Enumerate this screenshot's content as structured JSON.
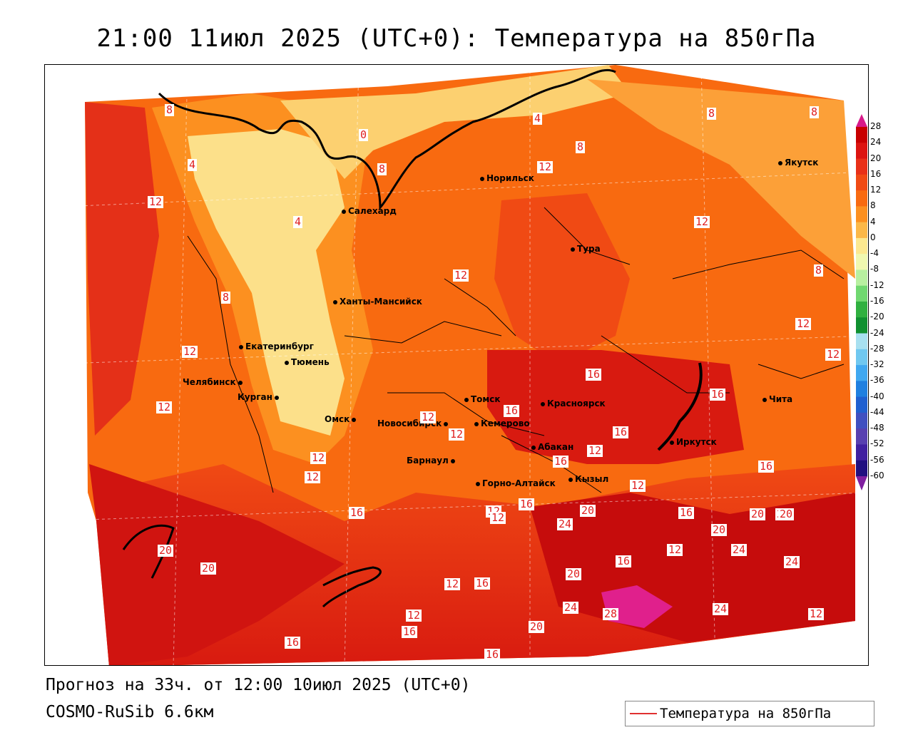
{
  "title": "21:00 11июл 2025 (UTC+0): Температура на 850гПа",
  "forecast_text": "Прогноз на 33ч. от 12:00 10июл 2025 (UTC+0)",
  "model_text": "COSMO-RuSib 6.6км",
  "legend_label": "Температура на 850гПа",
  "colorbar": {
    "ticks": [
      "28",
      "24",
      "20",
      "16",
      "12",
      "8",
      "4",
      "0",
      "-4",
      "-8",
      "-12",
      "-16",
      "-20",
      "-24",
      "-28",
      "-32",
      "-36",
      "-40",
      "-44",
      "-48",
      "-52",
      "-56",
      "-60"
    ],
    "colors": [
      "#c80000",
      "#dc1410",
      "#e83018",
      "#f04a14",
      "#f86a10",
      "#fc9020",
      "#fcb848",
      "#fce890",
      "#f0f8b0",
      "#b8f0a0",
      "#70d870",
      "#30b040",
      "#109030",
      "#a8e0f0",
      "#70c8f0",
      "#40a8f0",
      "#2080e0",
      "#2060d0",
      "#4050c0",
      "#5840b0",
      "#4020a0",
      "#201080",
      "#8020a0"
    ]
  },
  "cities": [
    {
      "name": "Норильск"
    },
    {
      "name": "Якутск"
    },
    {
      "name": "Салехард"
    },
    {
      "name": "Тура"
    },
    {
      "name": "Ханты-Мансийск"
    },
    {
      "name": "Екатеринбург"
    },
    {
      "name": "Тюмень"
    },
    {
      "name": "Челябинск"
    },
    {
      "name": "Курган"
    },
    {
      "name": "Омск"
    },
    {
      "name": "Томск"
    },
    {
      "name": "Красноярск"
    },
    {
      "name": "Новосибирск"
    },
    {
      "name": "Кемерово"
    },
    {
      "name": "Абакан"
    },
    {
      "name": "Барнаул"
    },
    {
      "name": "Горно-Алтайск"
    },
    {
      "name": "Кызыл"
    },
    {
      "name": "Иркутск"
    },
    {
      "name": "Чита"
    }
  ],
  "contour_labels": [
    "8",
    "4",
    "0",
    "8",
    "4",
    "8",
    "8",
    "12",
    "12",
    "4",
    "8",
    "8",
    "12",
    "12",
    "12",
    "12",
    "12",
    "8",
    "12",
    "12",
    "16",
    "16",
    "16",
    "16",
    "12",
    "12",
    "12",
    "12",
    "12",
    "16",
    "12",
    "12",
    "16",
    "16",
    "16",
    "20",
    "20",
    "12",
    "16",
    "20",
    "24",
    "20",
    "20",
    "16",
    "12",
    "24",
    "24",
    "20",
    "12",
    "16",
    "20",
    "24",
    "28",
    "24",
    "12",
    "16",
    "20",
    "16",
    "20",
    "16"
  ]
}
